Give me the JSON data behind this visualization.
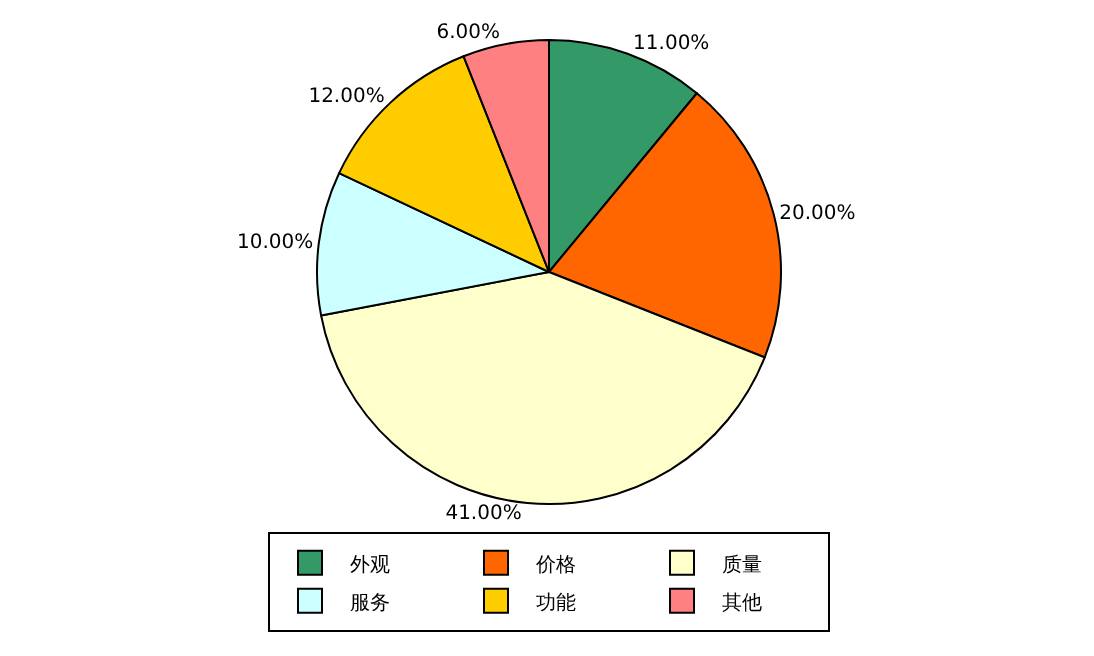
{
  "chart_data": {
    "type": "pie",
    "categories": [
      "外观",
      "价格",
      "质量",
      "服务",
      "功能",
      "其他"
    ],
    "values": [
      11,
      20,
      41,
      10,
      12,
      6
    ],
    "value_labels": [
      "11.00%",
      "20.00%",
      "41.00%",
      "10.00%",
      "12.00%",
      "6.00%"
    ],
    "colors": [
      "#339966",
      "#ff6600",
      "#ffffcc",
      "#ccffff",
      "#ffcc00",
      "#ff8080"
    ],
    "legend": "bottom"
  }
}
